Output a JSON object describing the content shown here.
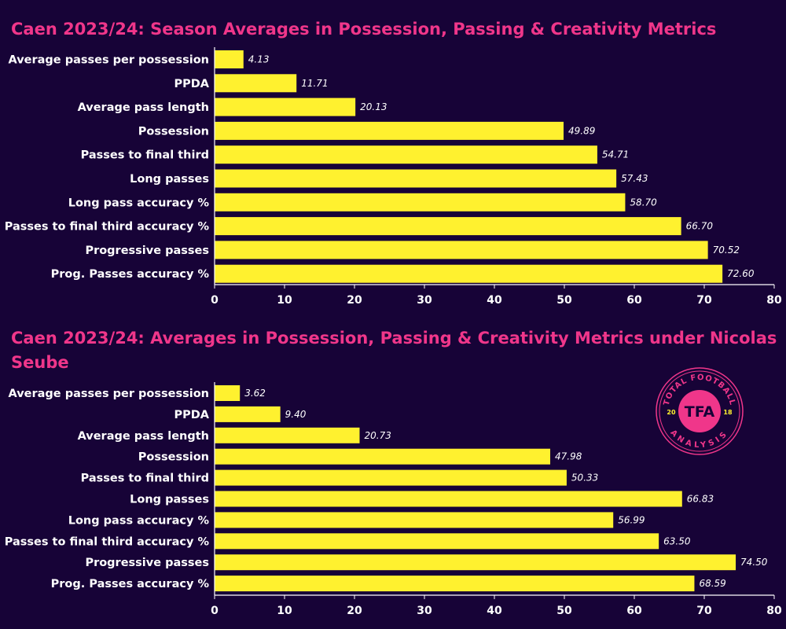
{
  "colors": {
    "background": "#170337",
    "bar": "#fff12f",
    "title": "#f0368a",
    "text": "#ffffff"
  },
  "logo": {
    "text": "TFA",
    "ring_top": "TOTAL FOOTBALL",
    "ring_bottom": "ANALYSIS",
    "year_left": "20",
    "year_right": "18"
  },
  "chart_data": [
    {
      "type": "bar",
      "orientation": "horizontal",
      "title": "Caen 2023/24: Season Averages in Possession, Passing & Creativity Metrics",
      "categories": [
        "Average passes per possession",
        "PPDA",
        "Average pass length",
        "Possession",
        "Passes to final third",
        "Long passes",
        "Long pass accuracy %",
        "Passes to final third accuracy %",
        "Progressive passes",
        "Prog. Passes accuracy %"
      ],
      "values": [
        4.13,
        11.71,
        20.13,
        49.89,
        54.71,
        57.43,
        58.7,
        66.7,
        70.52,
        72.6
      ],
      "labels": [
        "4.13",
        "11.71",
        "20.13",
        "49.89",
        "54.71",
        "57.43",
        "58.70",
        "66.70",
        "70.52",
        "72.60"
      ],
      "xlim": [
        0,
        80
      ],
      "xticks": [
        "0",
        "10",
        "20",
        "30",
        "40",
        "50",
        "60",
        "70",
        "80"
      ],
      "grid": false
    },
    {
      "type": "bar",
      "orientation": "horizontal",
      "title": "Caen 2023/24: Averages in Possession, Passing & Creativity Metrics under Nicolas Seube",
      "categories": [
        "Average passes per possession",
        "PPDA",
        "Average pass length",
        "Possession",
        "Passes to final third",
        "Long passes",
        "Long pass accuracy %",
        "Passes to final third accuracy %",
        "Progressive passes",
        "Prog. Passes accuracy %"
      ],
      "values": [
        3.62,
        9.4,
        20.73,
        47.98,
        50.33,
        66.83,
        56.99,
        63.5,
        74.5,
        68.59
      ],
      "labels": [
        "3.62",
        "9.40",
        "20.73",
        "47.98",
        "50.33",
        "66.83",
        "56.99",
        "63.50",
        "74.50",
        "68.59"
      ],
      "xlim": [
        0,
        80
      ],
      "xticks": [
        "0",
        "10",
        "20",
        "30",
        "40",
        "50",
        "60",
        "70",
        "80"
      ],
      "grid": false
    }
  ]
}
